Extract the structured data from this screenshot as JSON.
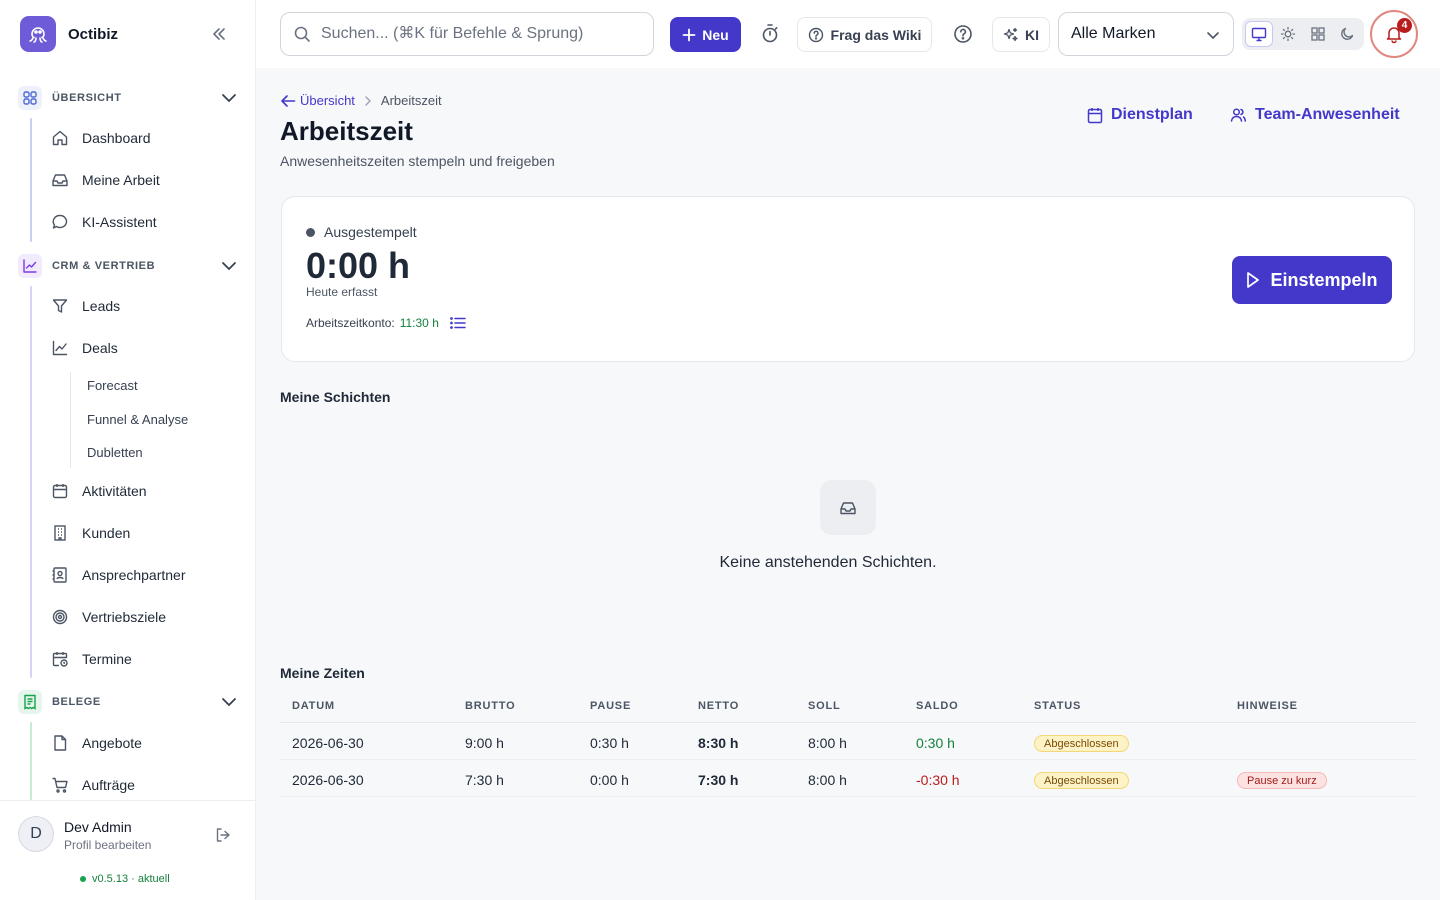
{
  "app": {
    "name": "Octibiz"
  },
  "sidebar": {
    "sections": [
      {
        "label": "ÜBERSICHT",
        "color": "#4f6bd8"
      },
      {
        "label": "CRM & VERTRIEB",
        "color": "#7c3aed"
      },
      {
        "label": "BELEGE",
        "color": "#16a34a"
      }
    ],
    "items": {
      "dashboard": "Dashboard",
      "meine_arbeit": "Meine Arbeit",
      "ki_assistent": "KI-Assistent",
      "leads": "Leads",
      "deals": "Deals",
      "forecast": "Forecast",
      "funnel": "Funnel & Analyse",
      "dubletten": "Dubletten",
      "aktivitaeten": "Aktivitäten",
      "kunden": "Kunden",
      "ansprechpartner": "Ansprechpartner",
      "vertriebsziele": "Vertriebsziele",
      "termine": "Termine",
      "angebote": "Angebote",
      "auftraege": "Aufträge"
    },
    "user": {
      "initial": "D",
      "name": "Dev Admin",
      "profile_link": "Profil bearbeiten"
    },
    "version": "v0.5.13 · aktuell"
  },
  "topbar": {
    "search_placeholder": "Suchen... (⌘K für Befehle & Sprung)",
    "new_label": "Neu",
    "wiki_label": "Frag das Wiki",
    "ki_label": "KI",
    "brand_select": "Alle Marken",
    "notifications_count": "4"
  },
  "header": {
    "breadcrumb_back": "Übersicht",
    "breadcrumb_current": "Arbeitszeit",
    "title": "Arbeitszeit",
    "subtitle": "Anwesenheitszeiten stempeln und freigeben",
    "link_dienstplan": "Dienstplan",
    "link_team": "Team-Anwesenheit"
  },
  "clock": {
    "status": "Ausgestempelt",
    "today_time": "0:00 h",
    "today_label": "Heute erfasst",
    "konto_label": "Arbeitszeitkonto:",
    "konto_value": "11:30 h",
    "clock_in_label": "Einstempeln"
  },
  "shifts": {
    "title": "Meine Schichten",
    "empty_text": "Keine anstehenden Schichten."
  },
  "times": {
    "title": "Meine Zeiten",
    "columns": {
      "datum": "DATUM",
      "brutto": "BRUTTO",
      "pause": "PAUSE",
      "netto": "NETTO",
      "soll": "SOLL",
      "saldo": "SALDO",
      "status": "STATUS",
      "hinweise": "HINWEISE"
    },
    "rows": [
      {
        "datum": "2026-06-30",
        "brutto": "9:00 h",
        "pause": "0:30 h",
        "netto": "8:30 h",
        "soll": "8:00 h",
        "saldo": "0:30 h",
        "status": "Abgeschlossen",
        "hinweis": ""
      },
      {
        "datum": "2026-06-30",
        "brutto": "7:30 h",
        "pause": "0:00 h",
        "netto": "7:30 h",
        "soll": "8:00 h",
        "saldo": "-0:30 h",
        "status": "Abgeschlossen",
        "hinweis": "Pause zu kurz"
      }
    ]
  }
}
